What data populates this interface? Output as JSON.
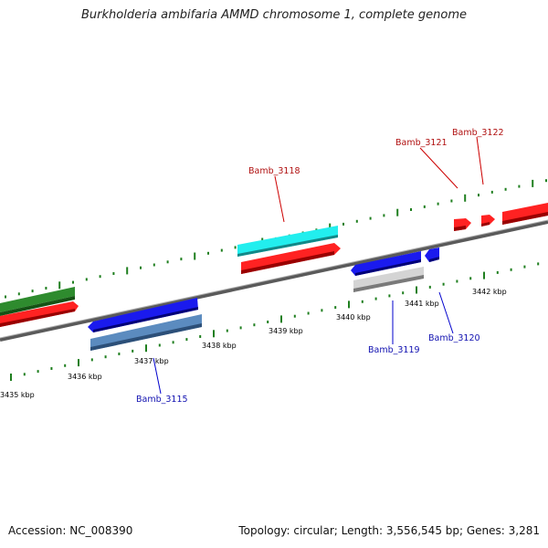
{
  "title": "Burkholderia ambifaria AMMD chromosome 1, complete genome",
  "footer": {
    "accession": "Accession: NC_008390",
    "summary": "Topology: circular; Length: 3,556,545 bp; Genes: 3,281"
  },
  "colors": {
    "tick": "#1f7f1f",
    "backbone": "#7f7f7f",
    "label_forward": "#b01010",
    "label_reverse": "#1010b0"
  },
  "scale_labels": [
    "3435 kbp",
    "3436 kbp",
    "3437 kbp",
    "3438 kbp",
    "3439 kbp",
    "3440 kbp",
    "3441 kbp",
    "3442 kbp"
  ],
  "gene_labels": {
    "bamb_3115": "Bamb_3115",
    "bamb_3118": "Bamb_3118",
    "bamb_3119": "Bamb_3119",
    "bamb_3120": "Bamb_3120",
    "bamb_3121": "Bamb_3121",
    "bamb_3122": "Bamb_3122"
  }
}
